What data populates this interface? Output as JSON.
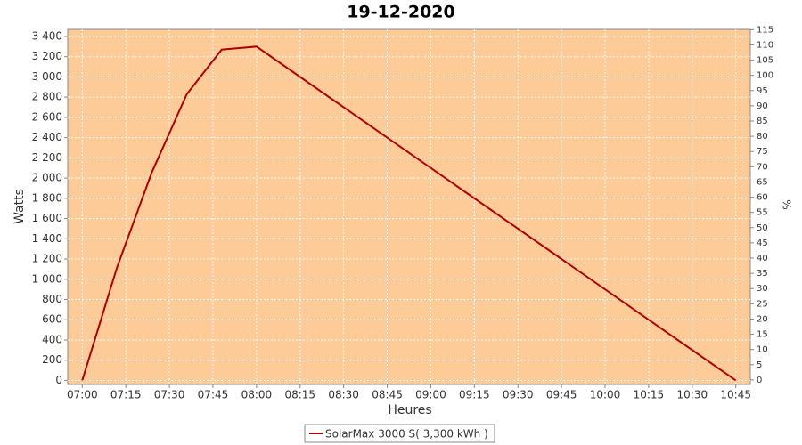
{
  "chart_data": {
    "type": "line",
    "title": "19-12-2020",
    "x_label": "Heures",
    "y_label": "Watts",
    "y2_label": "%",
    "x": [
      "07:00",
      "07:12",
      "07:24",
      "07:36",
      "07:48",
      "08:00",
      "10:45"
    ],
    "series": [
      {
        "name": "SolarMax 3000 S( 3,300 kWh )",
        "color": "#b00000",
        "values": [
          0,
          1120,
          2060,
          2830,
          3270,
          3300,
          0
        ]
      }
    ],
    "xlim": [
      "06:55",
      "10:50"
    ],
    "xticks": [
      "07:00",
      "07:15",
      "07:30",
      "07:45",
      "08:00",
      "08:15",
      "08:30",
      "08:45",
      "09:00",
      "09:15",
      "09:30",
      "09:45",
      "10:00",
      "10:15",
      "10:30",
      "10:45"
    ],
    "ylim": [
      -40,
      3470
    ],
    "yticks": [
      0,
      200,
      400,
      600,
      800,
      {
        "value": 1000,
        "label": "1 000"
      },
      {
        "value": 1200,
        "label": "1 200"
      },
      {
        "value": 1400,
        "label": "1 400"
      },
      {
        "value": 1600,
        "label": "1 600"
      },
      {
        "value": 1800,
        "label": "1 800"
      },
      {
        "value": 2000,
        "label": "2 000"
      },
      {
        "value": 2200,
        "label": "2 200"
      },
      {
        "value": 2400,
        "label": "2 400"
      },
      {
        "value": 2600,
        "label": "2 600"
      },
      {
        "value": 2800,
        "label": "2 800"
      },
      {
        "value": 3000,
        "label": "3 000"
      },
      {
        "value": 3200,
        "label": "3 200"
      },
      {
        "value": 3400,
        "label": "3 400"
      }
    ],
    "y2lim": [
      -1.5,
      115.1
    ],
    "y2ticks": [
      0,
      5,
      10,
      15,
      20,
      25,
      30,
      35,
      40,
      45,
      50,
      55,
      60,
      65,
      70,
      75,
      80,
      85,
      90,
      95,
      100,
      105,
      110,
      115
    ],
    "grid": true,
    "plot_background": "#fdcb98"
  }
}
